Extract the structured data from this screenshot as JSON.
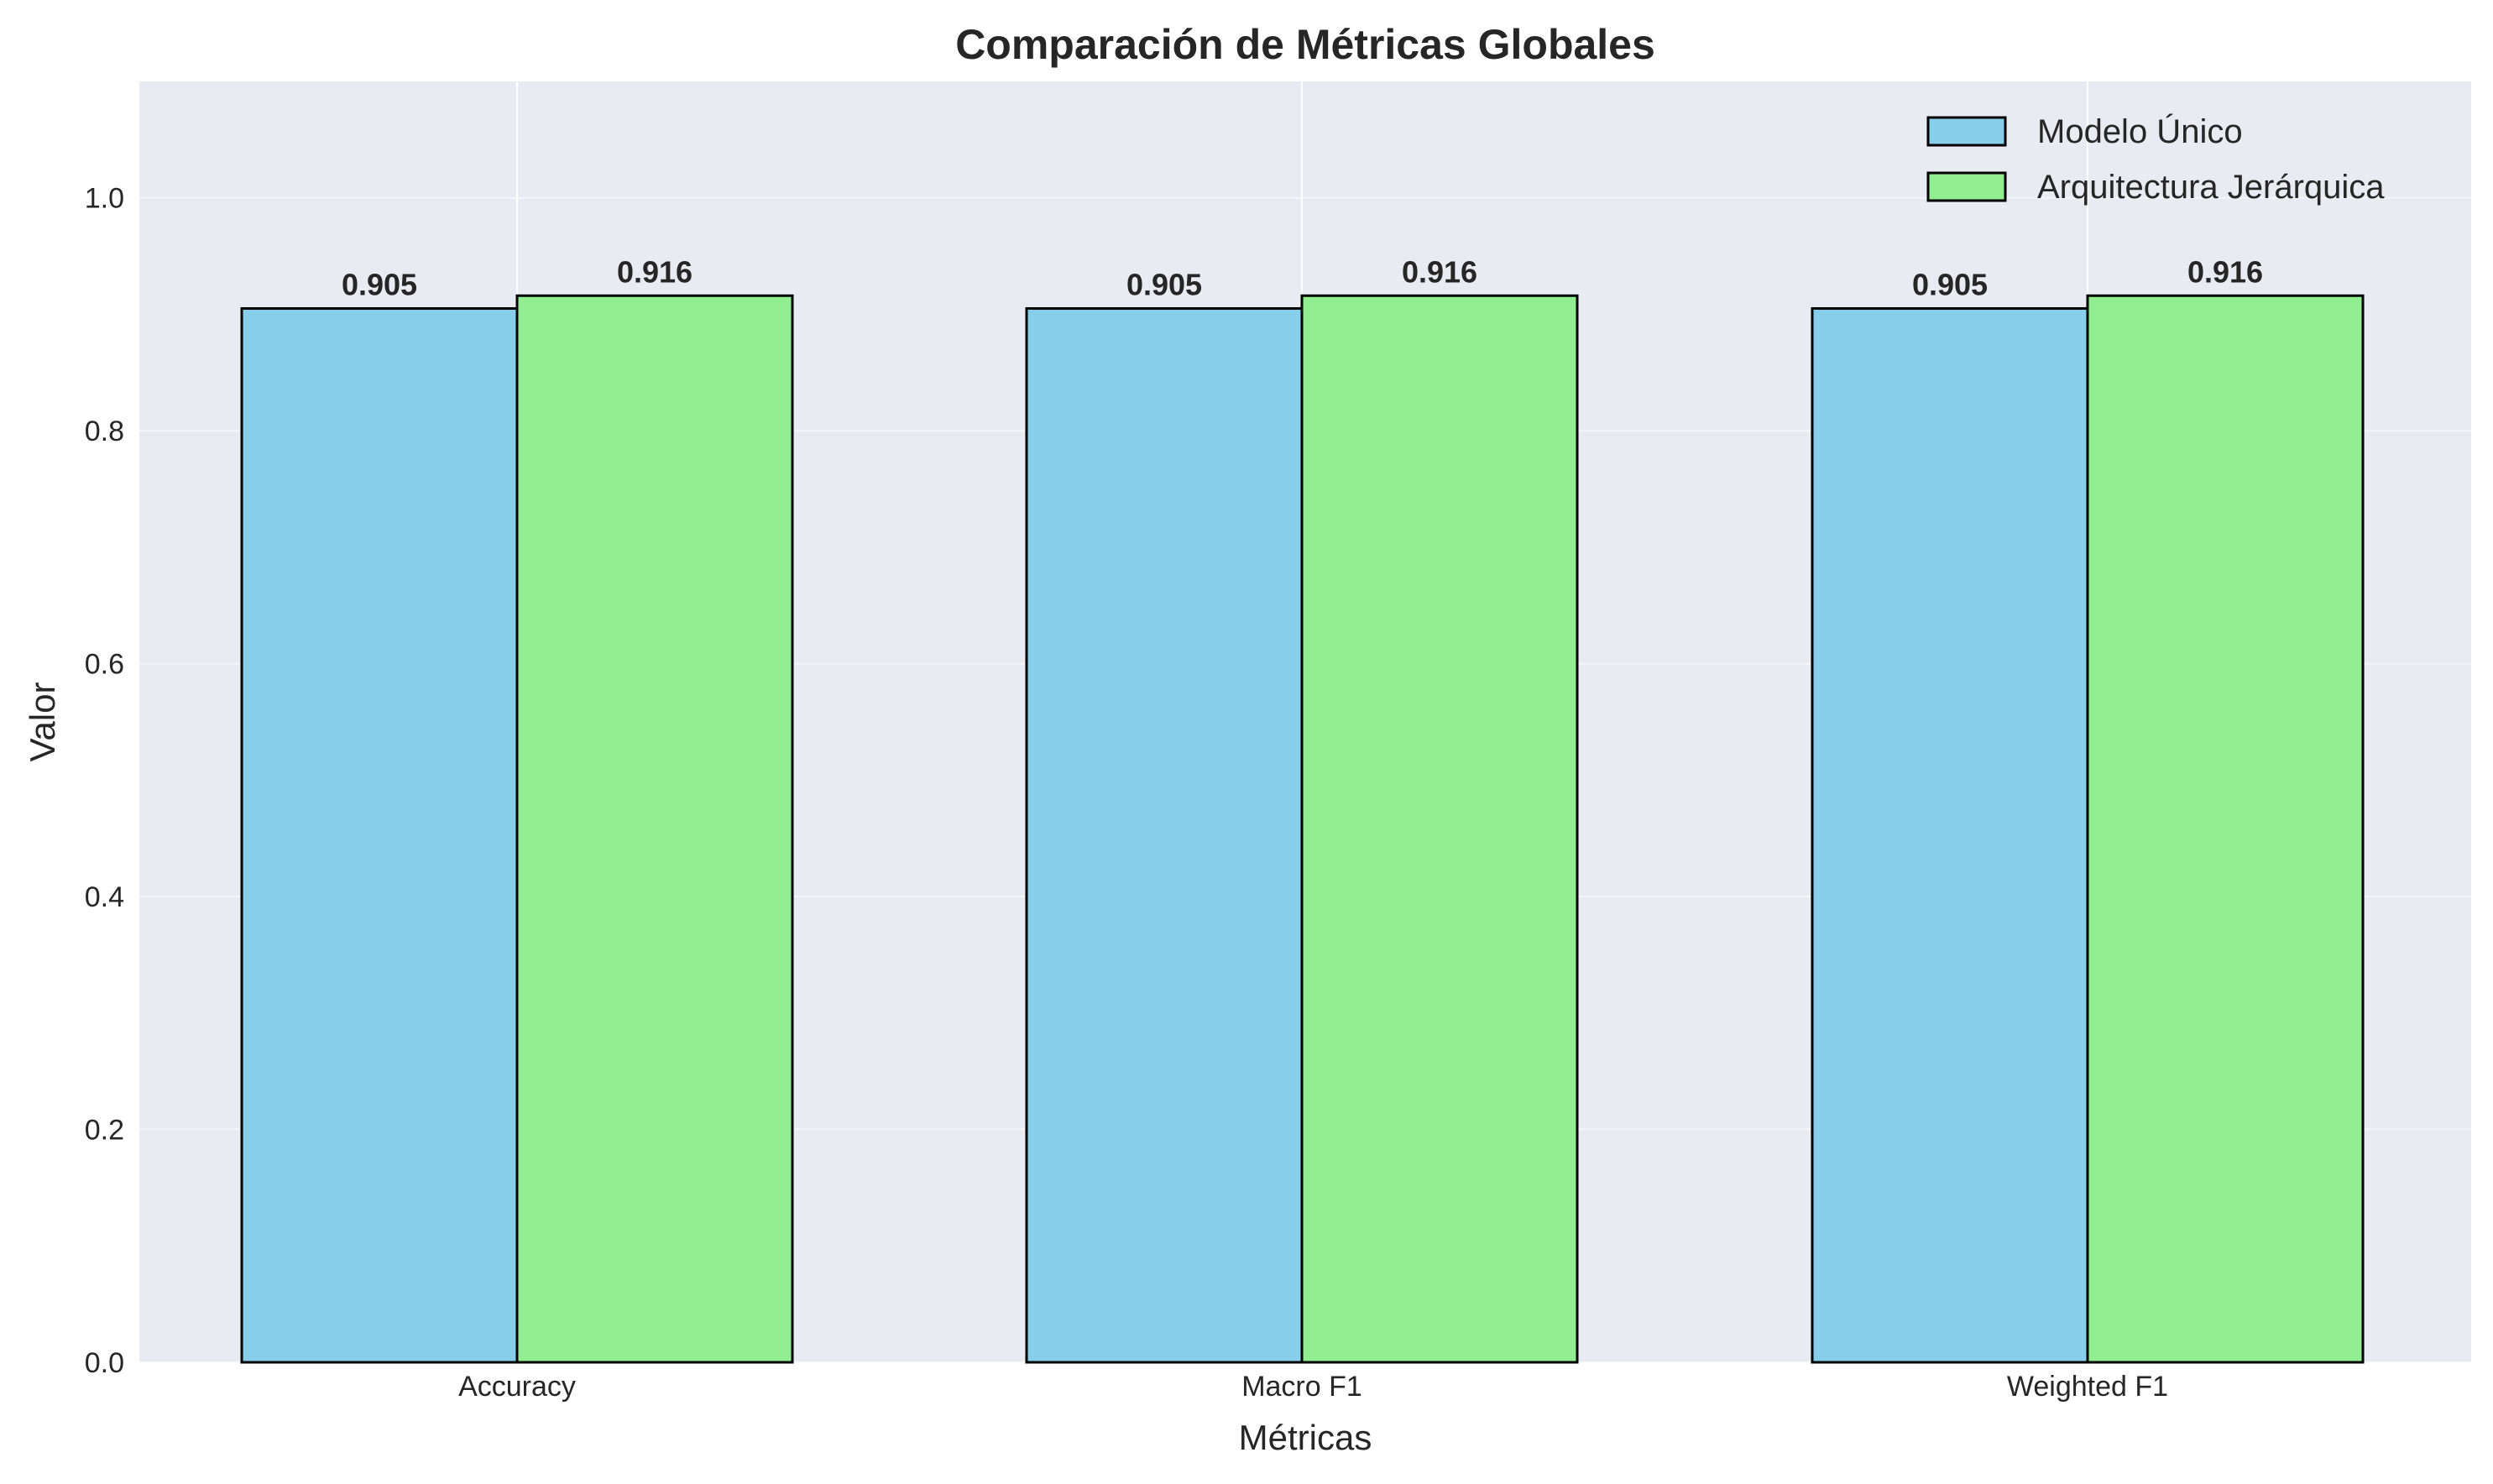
{
  "chart_data": {
    "type": "bar",
    "title": "Comparación de Métricas Globales",
    "xlabel": "Métricas",
    "ylabel": "Valor",
    "categories": [
      "Accuracy",
      "Macro F1",
      "Weighted F1"
    ],
    "series": [
      {
        "name": "Modelo Único",
        "values": [
          0.905,
          0.905,
          0.905
        ],
        "labels": [
          "0.905",
          "0.905",
          "0.905"
        ],
        "color": "#87CEEB"
      },
      {
        "name": "Arquitectura Jerárquica",
        "values": [
          0.916,
          0.916,
          0.916
        ],
        "labels": [
          "0.916",
          "0.916",
          "0.916"
        ],
        "color": "#90EE90"
      }
    ],
    "ylim": [
      0,
      1.1
    ],
    "yticks": [
      "0.0",
      "0.2",
      "0.4",
      "0.6",
      "0.8",
      "1.0"
    ],
    "grid": true,
    "legend_position": "top-right",
    "background_color": "#EAEAF2",
    "edge_color": "#000000"
  }
}
